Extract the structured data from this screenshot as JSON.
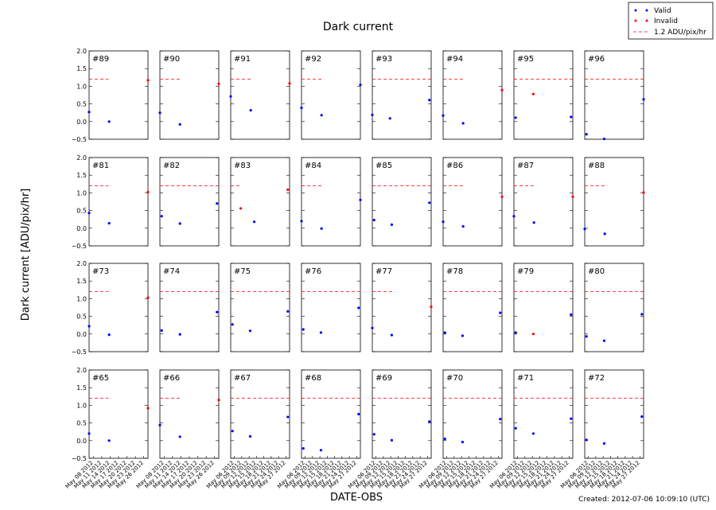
{
  "figure": {
    "title": "Dark current",
    "xlabel": "DATE-OBS",
    "ylabel": "Dark current [ADU/pix/hr]",
    "footer": "Created: 2012-07-06 10:09:10 (UTC)"
  },
  "legend": {
    "placement": "top-right",
    "entries": [
      {
        "label": "Valid",
        "color": "#0000ff",
        "style": "dots"
      },
      {
        "label": "Invalid",
        "color": "#ff0000",
        "style": "dots"
      },
      {
        "label": "1.2 ADU/pix/hr",
        "color": "#ff0000",
        "style": "dashed"
      }
    ]
  },
  "chart_data": {
    "type": "scatter",
    "grid": false,
    "ylim": [
      -0.5,
      2.0
    ],
    "y_ticks": [
      "2.0",
      "1.5",
      "1.0",
      "0.5",
      "0.0",
      "−0.5"
    ],
    "threshold": 1.2,
    "xlim": [
      0,
      1
    ],
    "colors": {
      "valid": "#0000ff",
      "invalid": "#ff0000",
      "threshold": "#ff0000"
    },
    "rows": [
      [
        {
          "label": "#89",
          "thr": [
            0,
            0.33
          ],
          "pts": [
            [
              0,
              0.27,
              "v"
            ],
            [
              0.34,
              0.0,
              "v"
            ],
            [
              1.0,
              1.17,
              "i"
            ]
          ]
        },
        {
          "label": "#90",
          "thr": [
            0,
            0.35
          ],
          "pts": [
            [
              0,
              0.25,
              "v"
            ],
            [
              0.34,
              -0.08,
              "v"
            ],
            [
              1.0,
              1.07,
              "i"
            ]
          ]
        },
        {
          "label": "#91",
          "thr": [
            0,
            0.35
          ],
          "pts": [
            [
              0,
              0.71,
              "v"
            ],
            [
              0.34,
              0.32,
              "v"
            ],
            [
              1.0,
              1.08,
              "i"
            ]
          ]
        },
        {
          "label": "#92",
          "thr": [
            0,
            0.35
          ],
          "pts": [
            [
              0,
              0.39,
              "v"
            ],
            [
              0.34,
              0.18,
              "v"
            ],
            [
              1.0,
              1.04,
              "v"
            ]
          ]
        },
        {
          "label": "#93",
          "thr": [
            0,
            1.0
          ],
          "pts": [
            [
              0,
              0.19,
              "v"
            ],
            [
              0.3,
              0.09,
              "v"
            ],
            [
              0.97,
              0.61,
              "v"
            ]
          ]
        },
        {
          "label": "#94",
          "thr": [
            0,
            0.35
          ],
          "pts": [
            [
              0,
              0.17,
              "v"
            ],
            [
              0.34,
              -0.05,
              "v"
            ],
            [
              1.0,
              0.89,
              "i"
            ]
          ]
        },
        {
          "label": "#95",
          "thr": [
            0,
            1.0
          ],
          "pts": [
            [
              0.03,
              0.11,
              "v"
            ],
            [
              0.33,
              0.78,
              "i"
            ],
            [
              0.97,
              0.13,
              "v"
            ]
          ]
        },
        {
          "label": "#96",
          "thr": [
            0,
            1.0
          ],
          "pts": [
            [
              0.03,
              -0.36,
              "v"
            ],
            [
              0.33,
              -0.49,
              "v"
            ],
            [
              1.0,
              0.63,
              "v"
            ]
          ]
        }
      ],
      [
        {
          "label": "#81",
          "thr": [
            0,
            0.33
          ],
          "pts": [
            [
              0,
              0.43,
              "v"
            ],
            [
              0.34,
              0.14,
              "v"
            ],
            [
              1.0,
              1.02,
              "i"
            ]
          ]
        },
        {
          "label": "#82",
          "thr": [
            0,
            1.0
          ],
          "pts": [
            [
              0.03,
              0.34,
              "v"
            ],
            [
              0.34,
              0.13,
              "v"
            ],
            [
              0.97,
              0.7,
              "v"
            ]
          ]
        },
        {
          "label": "#83",
          "thr": [
            0,
            0.18
          ],
          "pts": [
            [
              0.17,
              0.56,
              "i"
            ],
            [
              0.4,
              0.18,
              "v"
            ],
            [
              0.97,
              1.09,
              "i"
            ]
          ]
        },
        {
          "label": "#84",
          "thr": [
            0,
            0.35
          ],
          "pts": [
            [
              0,
              0.2,
              "v"
            ],
            [
              0.34,
              -0.01,
              "v"
            ],
            [
              1.0,
              0.8,
              "v"
            ]
          ]
        },
        {
          "label": "#85",
          "thr": [
            0,
            1.0
          ],
          "pts": [
            [
              0.03,
              0.23,
              "v"
            ],
            [
              0.33,
              0.1,
              "v"
            ],
            [
              0.97,
              0.72,
              "v"
            ]
          ]
        },
        {
          "label": "#86",
          "thr": [
            0,
            0.35
          ],
          "pts": [
            [
              0,
              0.18,
              "v"
            ],
            [
              0.34,
              0.05,
              "v"
            ],
            [
              1.0,
              0.89,
              "i"
            ]
          ]
        },
        {
          "label": "#87",
          "thr": [
            0,
            0.35
          ],
          "pts": [
            [
              0,
              0.34,
              "v"
            ],
            [
              0.34,
              0.16,
              "v"
            ],
            [
              1.0,
              0.89,
              "i"
            ]
          ]
        },
        {
          "label": "#88",
          "thr": [
            0,
            0.35
          ],
          "pts": [
            [
              0,
              -0.02,
              "v"
            ],
            [
              0.34,
              -0.16,
              "v"
            ],
            [
              1.0,
              1.01,
              "i"
            ]
          ]
        }
      ],
      [
        {
          "label": "#73",
          "thr": [
            0,
            0.33
          ],
          "pts": [
            [
              0,
              0.22,
              "v"
            ],
            [
              0.34,
              -0.02,
              "v"
            ],
            [
              1.0,
              1.03,
              "i"
            ]
          ]
        },
        {
          "label": "#74",
          "thr": [
            0,
            1.0
          ],
          "pts": [
            [
              0.03,
              0.1,
              "v"
            ],
            [
              0.34,
              -0.01,
              "v"
            ],
            [
              0.97,
              0.62,
              "v"
            ]
          ]
        },
        {
          "label": "#75",
          "thr": [
            0,
            1.0
          ],
          "pts": [
            [
              0.03,
              0.27,
              "v"
            ],
            [
              0.33,
              0.09,
              "v"
            ],
            [
              0.97,
              0.64,
              "v"
            ]
          ]
        },
        {
          "label": "#76",
          "thr": [
            0,
            1.0
          ],
          "pts": [
            [
              0.03,
              0.13,
              "v"
            ],
            [
              0.33,
              0.04,
              "v"
            ],
            [
              0.97,
              0.74,
              "v"
            ]
          ]
        },
        {
          "label": "#77",
          "thr": [
            0,
            0.35
          ],
          "pts": [
            [
              0,
              0.17,
              "v"
            ],
            [
              0.33,
              -0.03,
              "v"
            ],
            [
              1.0,
              0.77,
              "i"
            ]
          ]
        },
        {
          "label": "#78",
          "thr": [
            0,
            1.0
          ],
          "pts": [
            [
              0.03,
              0.04,
              "v"
            ],
            [
              0.33,
              -0.05,
              "v"
            ],
            [
              0.97,
              0.6,
              "v"
            ]
          ]
        },
        {
          "label": "#79",
          "thr": [
            0,
            1.0
          ],
          "pts": [
            [
              0.03,
              0.04,
              "v"
            ],
            [
              0.33,
              0.0,
              "i"
            ],
            [
              0.97,
              0.55,
              "v"
            ]
          ]
        },
        {
          "label": "#80",
          "thr": [
            0,
            1.0
          ],
          "pts": [
            [
              0.03,
              -0.07,
              "v"
            ],
            [
              0.33,
              -0.19,
              "v"
            ],
            [
              0.97,
              0.56,
              "v"
            ]
          ]
        }
      ],
      [
        {
          "label": "#65",
          "thr": [
            0,
            0.33
          ],
          "pts": [
            [
              0,
              0.2,
              "v"
            ],
            [
              0.34,
              0.0,
              "v"
            ],
            [
              1.0,
              0.92,
              "i"
            ]
          ]
        },
        {
          "label": "#66",
          "thr": [
            0,
            0.35
          ],
          "pts": [
            [
              0,
              0.44,
              "v"
            ],
            [
              0.34,
              0.11,
              "v"
            ],
            [
              1.0,
              1.15,
              "i"
            ]
          ]
        },
        {
          "label": "#67",
          "thr": [
            0,
            1.0
          ],
          "pts": [
            [
              0.03,
              0.27,
              "v"
            ],
            [
              0.33,
              0.12,
              "v"
            ],
            [
              0.97,
              0.67,
              "v"
            ]
          ]
        },
        {
          "label": "#68",
          "thr": [
            0,
            1.0
          ],
          "pts": [
            [
              0.03,
              -0.22,
              "v"
            ],
            [
              0.33,
              -0.27,
              "v"
            ],
            [
              0.97,
              0.75,
              "v"
            ]
          ]
        },
        {
          "label": "#69",
          "thr": [
            0,
            1.0
          ],
          "pts": [
            [
              0.03,
              0.18,
              "v"
            ],
            [
              0.33,
              0.01,
              "v"
            ],
            [
              0.97,
              0.54,
              "v"
            ]
          ]
        },
        {
          "label": "#70",
          "thr": [
            0,
            1.0
          ],
          "pts": [
            [
              0.03,
              0.05,
              "v"
            ],
            [
              0.33,
              -0.04,
              "v"
            ],
            [
              0.97,
              0.61,
              "v"
            ]
          ]
        },
        {
          "label": "#71",
          "thr": [
            0,
            1.0
          ],
          "pts": [
            [
              0.03,
              0.35,
              "v"
            ],
            [
              0.33,
              0.2,
              "v"
            ],
            [
              0.97,
              0.62,
              "v"
            ]
          ]
        },
        {
          "label": "#72",
          "thr": [
            0,
            1.0
          ],
          "pts": [
            [
              0.03,
              0.02,
              "v"
            ],
            [
              0.33,
              -0.08,
              "v"
            ],
            [
              0.97,
              0.68,
              "v"
            ]
          ]
        }
      ]
    ],
    "x_tick_sets": [
      [
        "May 08 2012",
        "May 11 2012",
        "May 14 2012",
        "May 17 2012",
        "May 20 2012",
        "May 23 2012",
        "May 26 2012"
      ],
      [
        "May 08 2012",
        "May 11 2012",
        "May 14 2012",
        "May 17 2012",
        "May 20 2012",
        "May 23 2012",
        "May 26 2012"
      ],
      [
        "May 06 2012",
        "May 09 2012",
        "May 12 2012",
        "May 15 2012",
        "May 18 2012",
        "May 21 2012",
        "May 24 2012",
        "May 27 2012"
      ],
      [
        "May 06 2012",
        "May 09 2012",
        "May 12 2012",
        "May 15 2012",
        "May 18 2012",
        "May 21 2012",
        "May 24 2012",
        "May 27 2012"
      ],
      [
        "May 06 2012",
        "May 09 2012",
        "May 12 2012",
        "May 15 2012",
        "May 18 2012",
        "May 21 2012",
        "May 24 2012",
        "May 27 2012"
      ],
      [
        "May 06 2012",
        "May 09 2012",
        "May 12 2012",
        "May 15 2012",
        "May 18 2012",
        "May 21 2012",
        "May 24 2012",
        "May 27 2012"
      ],
      [
        "May 06 2012",
        "May 09 2012",
        "May 12 2012",
        "May 15 2012",
        "May 18 2012",
        "May 21 2012",
        "May 24 2012",
        "May 27 2012"
      ],
      [
        "May 06 2012",
        "May 09 2012",
        "May 12 2012",
        "May 15 2012",
        "May 18 2012",
        "May 21 2012",
        "May 24 2012",
        "May 27 2012"
      ]
    ]
  }
}
